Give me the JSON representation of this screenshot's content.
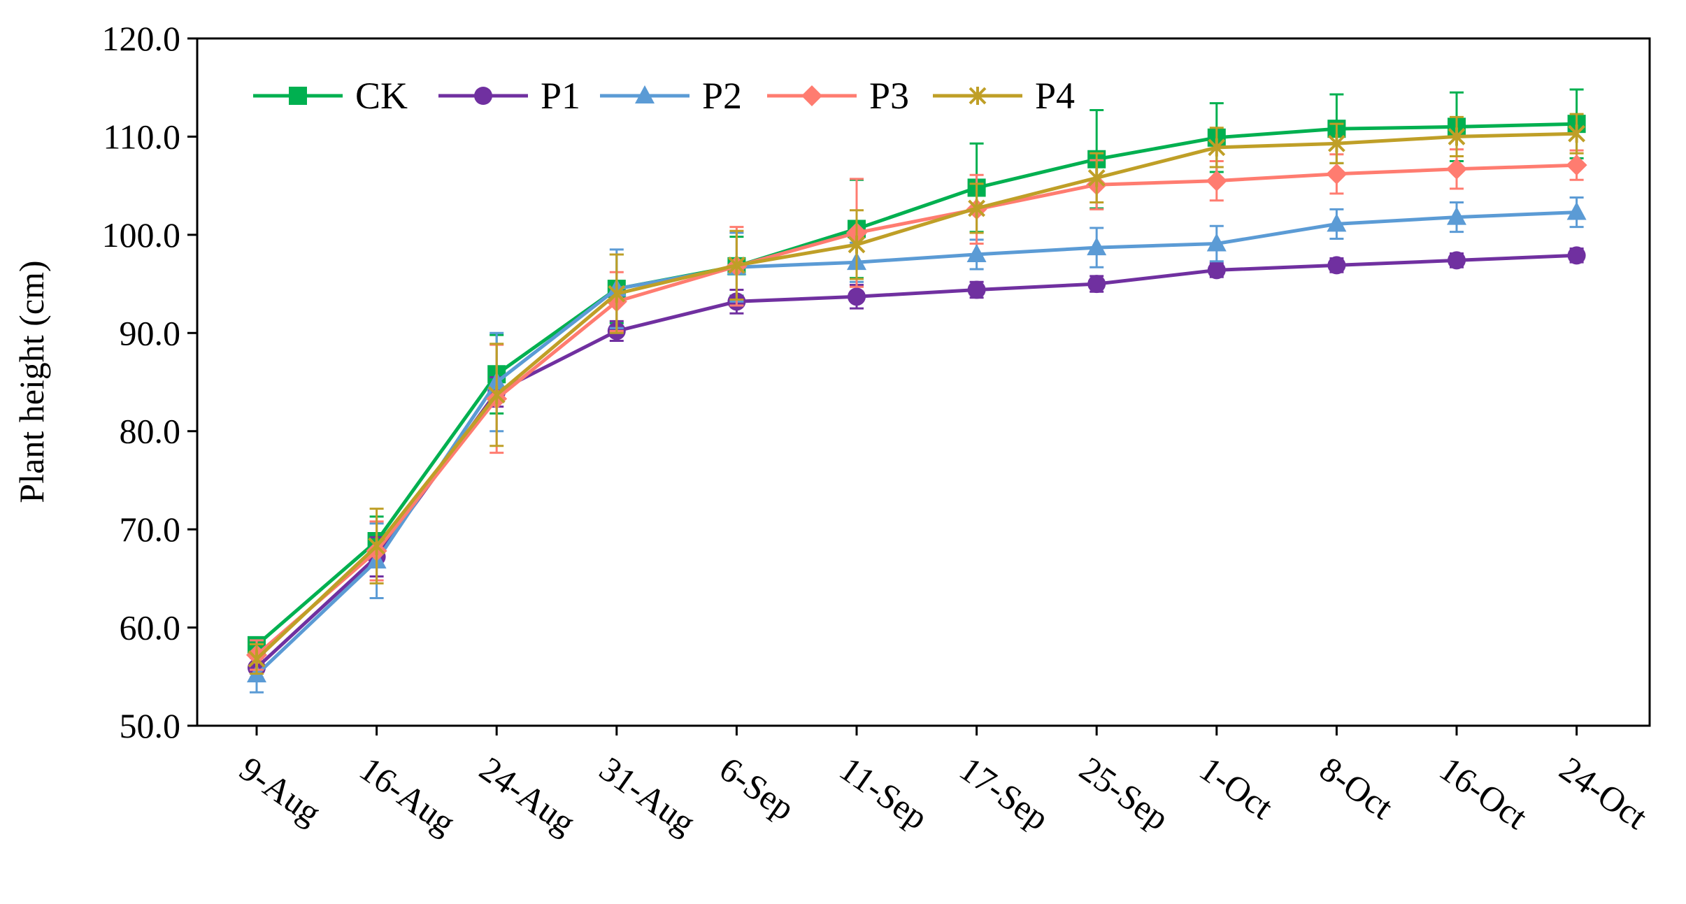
{
  "chart_data": {
    "type": "line",
    "title": "",
    "xlabel": "",
    "ylabel": "Plant height (cm)",
    "ylim": [
      50,
      120
    ],
    "yticks": [
      "50.0",
      "60.0",
      "70.0",
      "80.0",
      "90.0",
      "100.0",
      "110.0",
      "120.0"
    ],
    "ytick_values": [
      50,
      60,
      70,
      80,
      90,
      100,
      110,
      120
    ],
    "categories": [
      "9-Aug",
      "16-Aug",
      "24-Aug",
      "31-Aug",
      "6-Sep",
      "11-Sep",
      "17-Sep",
      "25-Sep",
      "1-Oct",
      "8-Oct",
      "16-Oct",
      "24-Oct"
    ],
    "legend_position": "top-left",
    "grid": false,
    "series": [
      {
        "name": "CK",
        "color": "#00b050",
        "marker": "square",
        "values": [
          58.2,
          68.8,
          85.8,
          94.5,
          96.8,
          100.6,
          104.8,
          107.7,
          109.9,
          110.8,
          111.0,
          111.3
        ],
        "errors": [
          0.8,
          2.5,
          4.0,
          3.5,
          3.0,
          5.0,
          4.5,
          5.0,
          3.5,
          3.5,
          3.5,
          3.5
        ]
      },
      {
        "name": "P1",
        "color": "#7030a0",
        "marker": "circle",
        "values": [
          55.9,
          67.2,
          84.0,
          90.2,
          93.2,
          93.7,
          94.4,
          95.0,
          96.4,
          96.9,
          97.4,
          97.9
        ],
        "errors": [
          1.0,
          2.0,
          1.5,
          1.0,
          1.2,
          1.2,
          0.8,
          0.8,
          0.7,
          0.7,
          0.7,
          0.7
        ]
      },
      {
        "name": "P2",
        "color": "#5b9bd5",
        "marker": "triangle",
        "values": [
          55.2,
          66.8,
          85.0,
          94.5,
          96.7,
          97.2,
          98.0,
          98.7,
          99.1,
          101.1,
          101.8,
          102.3
        ],
        "errors": [
          1.8,
          3.8,
          5.0,
          4.0,
          3.5,
          2.0,
          1.5,
          2.0,
          1.8,
          1.5,
          1.5,
          1.5
        ]
      },
      {
        "name": "P3",
        "color": "#ff7c70",
        "marker": "diamond",
        "values": [
          57.2,
          67.8,
          83.3,
          93.2,
          96.8,
          100.2,
          102.6,
          105.1,
          105.5,
          106.2,
          106.7,
          107.1
        ],
        "errors": [
          1.5,
          3.0,
          5.5,
          3.0,
          4.0,
          5.5,
          3.5,
          2.5,
          2.0,
          2.0,
          2.0,
          1.5
        ]
      },
      {
        "name": "P4",
        "color": "#bf9f27",
        "marker": "asterisk",
        "values": [
          56.8,
          68.3,
          83.7,
          94.0,
          96.9,
          99.0,
          102.7,
          105.8,
          108.9,
          109.3,
          110.0,
          110.3
        ],
        "errors": [
          1.5,
          3.8,
          5.2,
          4.0,
          3.5,
          3.5,
          2.5,
          2.5,
          2.0,
          2.0,
          2.0,
          2.0
        ]
      }
    ]
  }
}
